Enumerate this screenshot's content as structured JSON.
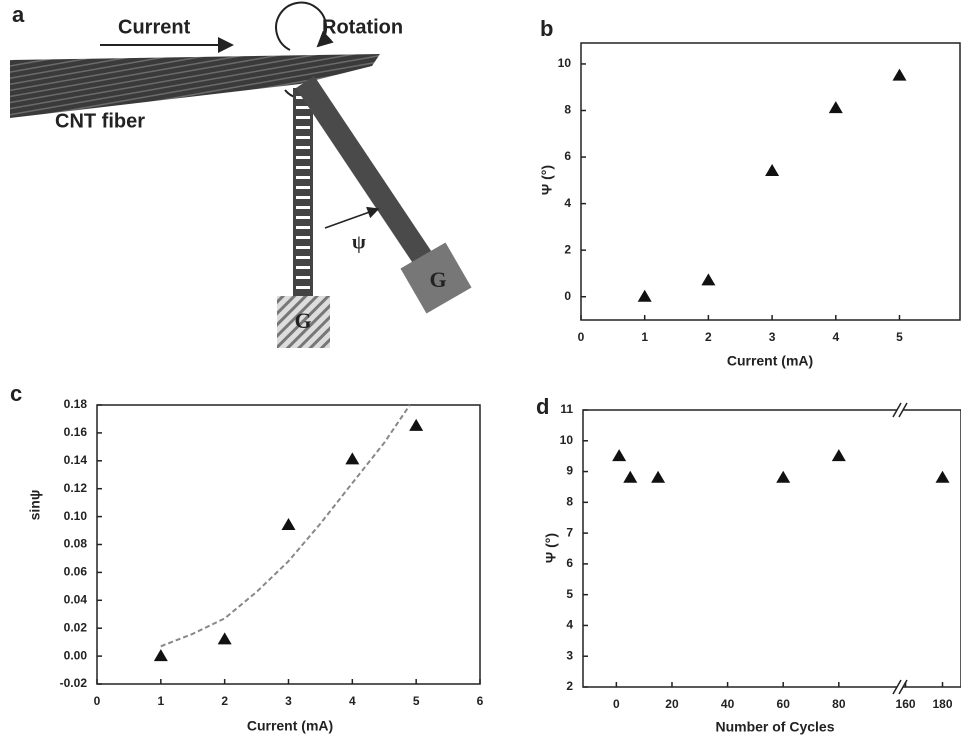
{
  "panel_a": {
    "label": "a",
    "current": "Current",
    "rotation": "Rotation",
    "fiber": "CNT fiber",
    "psi": "ψ",
    "weights": [
      "G",
      "G"
    ]
  },
  "chart_data": [
    {
      "type": "scatter",
      "panel_label": "b",
      "xlabel": "Current (mA)",
      "ylabel": "Ψ (°)",
      "xlim": [
        0,
        5.95
      ],
      "xticks": [
        0,
        1,
        2,
        3,
        4,
        5
      ],
      "ylim": [
        -1,
        10.9
      ],
      "yticks": [
        0,
        2,
        4,
        6,
        8,
        10
      ],
      "series": [
        {
          "color": "#111111",
          "marker": "triangle",
          "x": [
            1,
            2,
            3,
            4,
            5
          ],
          "values": [
            0,
            0.7,
            5.4,
            8.1,
            9.5
          ]
        }
      ]
    },
    {
      "type": "scatter",
      "panel_label": "c",
      "xlabel": "Current  (mA)",
      "ylabel": "sinψ",
      "xlim": [
        0,
        6
      ],
      "xticks": [
        0,
        1,
        2,
        3,
        4,
        5,
        6
      ],
      "ylim": [
        -0.02,
        0.18
      ],
      "yticks": [
        -0.02,
        {
          "value": 0,
          "label": "0.00"
        },
        0.02,
        0.04,
        0.06,
        0.08,
        {
          "value": 0.1,
          "label": "0.10"
        },
        0.12,
        0.14,
        0.16,
        0.18
      ],
      "series": [
        {
          "color": "#111111",
          "marker": "triangle",
          "x": [
            1,
            2,
            3,
            4,
            5
          ],
          "values": [
            0.0,
            0.012,
            0.094,
            0.141,
            0.165
          ]
        },
        {
          "color": "#888888",
          "line_style": "dashed",
          "x": [
            1,
            1.5,
            2,
            2.5,
            3,
            3.5,
            4,
            4.5,
            4.9
          ],
          "values": [
            0.007,
            0.016,
            0.027,
            0.046,
            0.068,
            0.095,
            0.124,
            0.153,
            0.18
          ]
        }
      ]
    },
    {
      "type": "scatter",
      "panel_label": "d",
      "xlabel": "Number of Cycles",
      "ylabel": "Ψ (°)",
      "x_segments": [
        {
          "xlim": [
            -12,
            102
          ],
          "xticks": [
            0,
            20,
            40,
            60,
            80
          ]
        },
        {
          "xlim": [
            157,
            190
          ],
          "xticks": [
            160,
            180
          ]
        }
      ],
      "ylim": [
        2,
        11
      ],
      "yticks": [
        2,
        3,
        4,
        5,
        6,
        7,
        8,
        9,
        10,
        11
      ],
      "series": [
        {
          "color": "#111111",
          "marker": "triangle",
          "x": [
            1,
            5,
            15,
            60,
            80,
            180
          ],
          "values": [
            9.5,
            8.8,
            8.8,
            8.8,
            9.5,
            8.8
          ]
        }
      ]
    }
  ]
}
